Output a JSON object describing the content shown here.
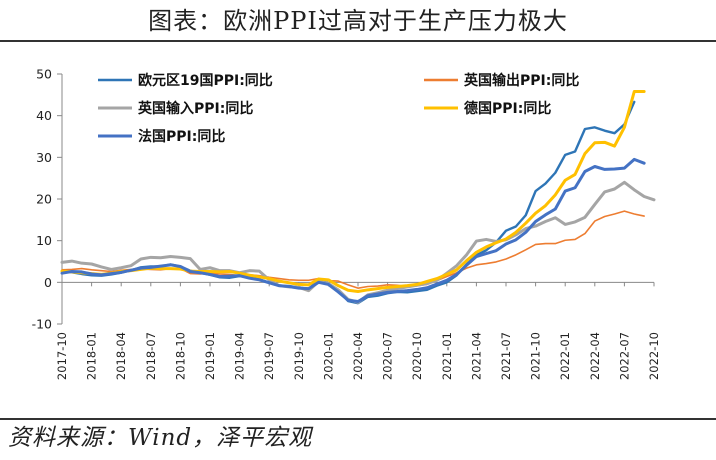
{
  "header": {
    "title": "图表：欧洲PPI过高对于生产压力极大"
  },
  "footer": {
    "source": "资料来源：Wind，泽平宏观"
  },
  "colors": {
    "eurozone": "#2E75B6",
    "uk_output": "#ED7D31",
    "uk_input": "#A5A5A5",
    "germany": "#FFC000",
    "france": "#4472C4",
    "axis": "#888888"
  },
  "chart_data": {
    "type": "line",
    "title": "图表：欧洲PPI过高对于生产压力极大",
    "xlabel": "",
    "ylabel": "",
    "ylim": [
      -10,
      50
    ],
    "yticks": [
      -10,
      0,
      10,
      20,
      30,
      40,
      50
    ],
    "x_start": "2017-10",
    "xticks": [
      "2017-10",
      "2018-01",
      "2018-04",
      "2018-07",
      "2018-10",
      "2019-01",
      "2019-04",
      "2019-07",
      "2019-10",
      "2020-01",
      "2020-04",
      "2020-07",
      "2020-10",
      "2021-01",
      "2021-04",
      "2021-07",
      "2021-10",
      "2022-01",
      "2022-04",
      "2022-07",
      "2022-10"
    ],
    "grid": false,
    "legend": "top-left",
    "series": [
      {
        "name": "欧元区19国PPI:同比",
        "color": "#2E75B6",
        "width": 2.4,
        "values": [
          2.7,
          2.4,
          2.0,
          1.7,
          1.6,
          1.9,
          2.3,
          2.9,
          3.6,
          3.8,
          3.8,
          4.3,
          3.8,
          2.8,
          2.3,
          1.8,
          1.2,
          1.1,
          1.5,
          1.2,
          0.7,
          -0.1,
          -0.8,
          -0.9,
          -1.2,
          -1.6,
          0.5,
          -0.2,
          -2.0,
          -4.5,
          -5.0,
          -3.5,
          -3.2,
          -2.6,
          -2.3,
          -2.4,
          -2.1,
          -1.8,
          -0.8,
          0.0,
          1.7,
          4.3,
          6.5,
          7.7,
          9.6,
          12.4,
          13.4,
          16.1,
          21.9,
          23.7,
          26.3,
          30.6,
          31.4,
          36.8,
          37.2,
          36.4,
          35.8,
          37.9,
          43.3
        ]
      },
      {
        "name": "英国输出PPI:同比",
        "color": "#ED7D31",
        "width": 1.6,
        "values": [
          3.0,
          3.1,
          3.3,
          3.0,
          2.8,
          2.6,
          2.9,
          3.1,
          3.2,
          3.1,
          3.0,
          3.3,
          3.3,
          2.1,
          2.0,
          2.2,
          2.0,
          1.9,
          1.6,
          1.8,
          1.6,
          1.2,
          0.9,
          0.6,
          0.5,
          0.5,
          0.9,
          0.4,
          0.3,
          -0.6,
          -1.4,
          -1.0,
          -0.9,
          -0.6,
          -0.7,
          -1.0,
          -0.8,
          -0.5,
          0.4,
          1.4,
          2.3,
          3.4,
          4.2,
          4.5,
          4.9,
          5.6,
          6.6,
          7.8,
          9.1,
          9.3,
          9.3,
          10.1,
          10.3,
          11.7,
          14.7,
          15.8,
          16.4,
          17.1,
          16.4,
          15.9
        ]
      },
      {
        "name": "英国输入PPI:同比",
        "color": "#A5A5A5",
        "width": 3.0,
        "values": [
          4.8,
          5.1,
          4.6,
          4.4,
          3.7,
          3.1,
          3.5,
          4.0,
          5.6,
          6.0,
          5.9,
          6.2,
          6.0,
          5.7,
          3.1,
          3.5,
          2.8,
          2.8,
          2.3,
          2.8,
          2.7,
          0.6,
          -0.8,
          -1.1,
          -1.2,
          -2.0,
          0.2,
          -0.3,
          -1.8,
          -4.1,
          -4.8,
          -3.0,
          -2.5,
          -1.9,
          -1.5,
          -1.1,
          -0.7,
          -0.3,
          0.5,
          2.2,
          4.0,
          6.6,
          9.9,
          10.3,
          9.8,
          10.2,
          11.4,
          12.9,
          13.5,
          14.6,
          15.5,
          13.9,
          14.5,
          15.6,
          18.7,
          21.7,
          22.4,
          24.0,
          22.2,
          20.6,
          19.8
        ]
      },
      {
        "name": "德国PPI:同比",
        "color": "#FFC000",
        "width": 3.0,
        "values": [
          2.7,
          2.5,
          2.3,
          2.1,
          1.9,
          2.2,
          2.6,
          2.8,
          3.1,
          3.4,
          3.3,
          3.3,
          3.2,
          2.7,
          2.6,
          2.6,
          2.5,
          2.6,
          2.2,
          1.7,
          1.3,
          0.9,
          0.3,
          -0.1,
          -0.5,
          -0.6,
          0.8,
          0.6,
          -0.8,
          -1.9,
          -2.2,
          -1.8,
          -1.5,
          -1.2,
          -1.0,
          -0.8,
          -0.5,
          0.2,
          0.9,
          1.9,
          3.0,
          5.2,
          7.2,
          8.5,
          9.5,
          10.4,
          12.0,
          14.2,
          16.6,
          18.4,
          21.0,
          24.5,
          25.9,
          30.9,
          33.5,
          33.6,
          32.7,
          37.2,
          45.8,
          45.8
        ]
      },
      {
        "name": "法国PPI:同比",
        "color": "#4472C4",
        "width": 3.0,
        "values": [
          2.2,
          2.6,
          2.5,
          2.0,
          1.8,
          2.1,
          2.4,
          2.9,
          3.4,
          3.6,
          3.9,
          4.2,
          3.8,
          2.6,
          2.3,
          1.9,
          1.4,
          1.5,
          1.6,
          1.0,
          0.6,
          -0.1,
          -0.8,
          -1.0,
          -1.4,
          -1.5,
          0.0,
          -0.5,
          -2.3,
          -4.3,
          -4.6,
          -3.2,
          -2.8,
          -2.4,
          -2.2,
          -2.0,
          -1.7,
          -1.3,
          -0.4,
          0.5,
          1.9,
          4.1,
          6.2,
          6.9,
          7.6,
          9.2,
          10.2,
          12.0,
          14.6,
          16.2,
          17.6,
          21.9,
          22.7,
          26.6,
          27.8,
          27.1,
          27.2,
          27.4,
          29.5,
          28.6
        ]
      }
    ]
  }
}
